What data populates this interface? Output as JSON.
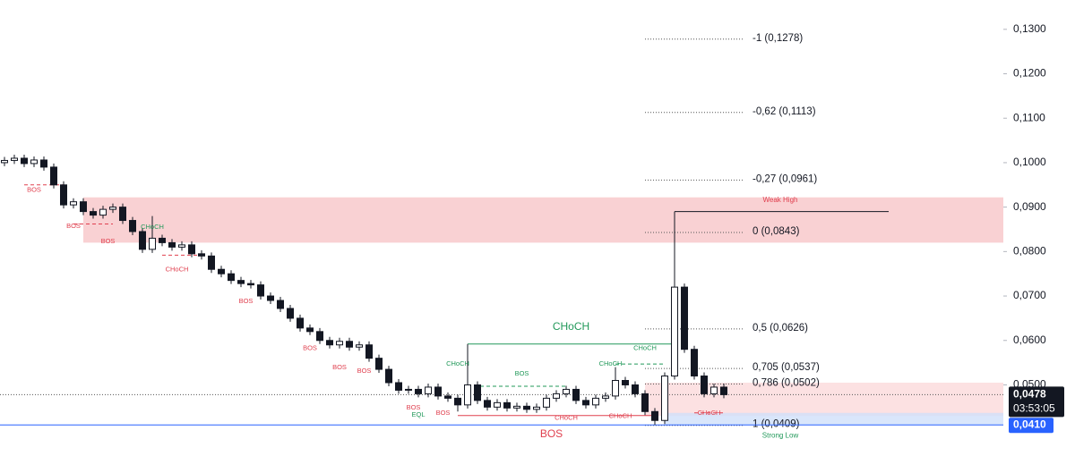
{
  "chart_data": {
    "type": "candlestick",
    "ylim": [
      0.034,
      0.1366
    ],
    "yticks": [
      {
        "value": 0.13,
        "label": "0,1300"
      },
      {
        "value": 0.12,
        "label": "0,1200"
      },
      {
        "value": 0.11,
        "label": "0,1100"
      },
      {
        "value": 0.1,
        "label": "0,1000"
      },
      {
        "value": 0.09,
        "label": "0,0900"
      },
      {
        "value": 0.08,
        "label": "0,0800"
      },
      {
        "value": 0.07,
        "label": "0,0700"
      },
      {
        "value": 0.06,
        "label": "0,0600"
      },
      {
        "value": 0.05,
        "label": "0,0500"
      }
    ],
    "up_color": "#ffffff",
    "down_color": "#131722",
    "open": [
      0.1,
      0.1005,
      0.101,
      0.0998,
      0.1006,
      0.099,
      0.095,
      0.0905,
      0.0912,
      0.089,
      0.0882,
      0.0895,
      0.09,
      0.087,
      0.0845,
      0.0805,
      0.083,
      0.082,
      0.081,
      0.0815,
      0.0795,
      0.079,
      0.076,
      0.075,
      0.0735,
      0.0728,
      0.0725,
      0.07,
      0.069,
      0.0672,
      0.065,
      0.0628,
      0.062,
      0.06,
      0.059,
      0.0598,
      0.0585,
      0.059,
      0.056,
      0.0535,
      0.0505,
      0.0488,
      0.049,
      0.048,
      0.0495,
      0.0475,
      0.047,
      0.0455,
      0.05,
      0.0465,
      0.045,
      0.046,
      0.0448,
      0.0452,
      0.0445,
      0.045,
      0.047,
      0.048,
      0.049,
      0.0465,
      0.0455,
      0.047,
      0.0475,
      0.051,
      0.05,
      0.048,
      0.044,
      0.042,
      0.052,
      0.072,
      0.058,
      0.052,
      0.048,
      0.0495
    ],
    "high": [
      0.1013,
      0.1018,
      0.1018,
      0.1014,
      0.1014,
      0.0998,
      0.0958,
      0.092,
      0.092,
      0.0898,
      0.0903,
      0.0908,
      0.0908,
      0.0878,
      0.0853,
      0.088,
      0.0838,
      0.0828,
      0.0823,
      0.0823,
      0.0803,
      0.0798,
      0.0768,
      0.0758,
      0.0743,
      0.0736,
      0.0733,
      0.0708,
      0.0698,
      0.068,
      0.0658,
      0.0636,
      0.0628,
      0.0608,
      0.0606,
      0.0606,
      0.0598,
      0.0598,
      0.0568,
      0.0543,
      0.0513,
      0.0498,
      0.0498,
      0.0503,
      0.0503,
      0.0483,
      0.0478,
      0.0592,
      0.0508,
      0.0473,
      0.0468,
      0.0468,
      0.046,
      0.046,
      0.0458,
      0.0478,
      0.0488,
      0.0498,
      0.0498,
      0.0473,
      0.0478,
      0.0483,
      0.054,
      0.0518,
      0.0508,
      0.0488,
      0.0448,
      0.0528,
      0.089,
      0.0728,
      0.0588,
      0.0528,
      0.0503,
      0.0503
    ],
    "low": [
      0.0992,
      0.0997,
      0.099,
      0.099,
      0.0982,
      0.0942,
      0.0897,
      0.0897,
      0.0882,
      0.0874,
      0.0874,
      0.0887,
      0.0862,
      0.0837,
      0.0797,
      0.0797,
      0.0812,
      0.0802,
      0.0802,
      0.0787,
      0.0782,
      0.0752,
      0.0742,
      0.0727,
      0.072,
      0.0717,
      0.0692,
      0.0682,
      0.0664,
      0.0642,
      0.062,
      0.0612,
      0.0592,
      0.0582,
      0.0582,
      0.0577,
      0.0577,
      0.0552,
      0.0527,
      0.0497,
      0.048,
      0.048,
      0.0472,
      0.0472,
      0.0467,
      0.0462,
      0.044,
      0.0447,
      0.0457,
      0.0442,
      0.0442,
      0.044,
      0.044,
      0.0437,
      0.0437,
      0.0442,
      0.0462,
      0.0472,
      0.0457,
      0.0447,
      0.0447,
      0.0462,
      0.0467,
      0.0492,
      0.0472,
      0.0432,
      0.041,
      0.0412,
      0.0512,
      0.0572,
      0.0512,
      0.0472,
      0.0472,
      0.047
    ],
    "close": [
      0.1005,
      0.101,
      0.0998,
      0.1006,
      0.099,
      0.095,
      0.0905,
      0.0912,
      0.089,
      0.0882,
      0.0895,
      0.09,
      0.087,
      0.0845,
      0.0805,
      0.083,
      0.082,
      0.081,
      0.0815,
      0.0795,
      0.079,
      0.076,
      0.075,
      0.0735,
      0.0728,
      0.0725,
      0.07,
      0.069,
      0.0672,
      0.065,
      0.0628,
      0.062,
      0.06,
      0.059,
      0.0598,
      0.0585,
      0.059,
      0.056,
      0.0535,
      0.0505,
      0.0488,
      0.049,
      0.048,
      0.0495,
      0.0475,
      0.047,
      0.0455,
      0.05,
      0.0465,
      0.045,
      0.046,
      0.0448,
      0.0452,
      0.0445,
      0.045,
      0.047,
      0.048,
      0.049,
      0.0465,
      0.0455,
      0.047,
      0.0475,
      0.051,
      0.05,
      0.048,
      0.044,
      0.042,
      0.052,
      0.072,
      0.058,
      0.052,
      0.048,
      0.0495,
      0.0478
    ],
    "zones": [
      {
        "top": 0.0922,
        "bottom": 0.082,
        "from": 8,
        "color": "#f7c5c8",
        "label": "Weak High",
        "label_color": "#e0404f"
      },
      {
        "top": 0.0505,
        "bottom": 0.043,
        "from": 65,
        "color": "#fbd9db"
      },
      {
        "top": 0.0437,
        "bottom": 0.041,
        "from": 67,
        "color": "#cfe0fa",
        "label": "Strong Low",
        "label_color": "#22995a"
      }
    ],
    "levels": [
      {
        "value": 0.089,
        "from": 68,
        "color": "#131722",
        "dashed": false
      },
      {
        "value": 0.0592,
        "from": 47,
        "to": 68,
        "color": "#22995a",
        "dashed": false
      },
      {
        "value": 0.0431,
        "from": 46,
        "to": 66,
        "color": "#e0404f",
        "dashed": false
      },
      {
        "value": 0.095,
        "from": 2,
        "to": 6,
        "color": "#e0404f",
        "dashed": true
      },
      {
        "value": 0.0862,
        "from": 7,
        "to": 11,
        "color": "#e0404f",
        "dashed": true
      },
      {
        "value": 0.0792,
        "from": 16,
        "to": 20,
        "color": "#e0404f",
        "dashed": true
      },
      {
        "value": 0.0497,
        "from": 47,
        "to": 57,
        "color": "#22995a",
        "dashed": true
      },
      {
        "value": 0.0547,
        "from": 62,
        "to": 67,
        "color": "#22995a",
        "dashed": true
      },
      {
        "value": 0.0437,
        "from": 70,
        "to": 73,
        "color": "#e0404f",
        "dashed": true
      }
    ],
    "fib": [
      {
        "label": "-1 (0,1278)",
        "value": 0.1278
      },
      {
        "label": "-0,62 (0,1113)",
        "value": 0.1113
      },
      {
        "label": "-0,27 (0,0961)",
        "value": 0.0961
      },
      {
        "label": "0 (0,0843)",
        "value": 0.0843
      },
      {
        "label": "0,5 (0,0626)",
        "value": 0.0626
      },
      {
        "label": "0,705 (0,0537)",
        "value": 0.0537
      },
      {
        "label": "0,786 (0,0502)",
        "value": 0.0502
      },
      {
        "label": "1 (0,0409)",
        "value": 0.0409
      }
    ],
    "annotations": [
      {
        "text": "BOS",
        "x": 3,
        "y": 0.0938,
        "color": "#e0404f"
      },
      {
        "text": "BOS",
        "x": 7,
        "y": 0.0857,
        "color": "#e0404f"
      },
      {
        "text": "BOS",
        "x": 10.5,
        "y": 0.0823,
        "color": "#e0404f"
      },
      {
        "text": "CHoCH",
        "x": 15,
        "y": 0.0855,
        "color": "#22995a"
      },
      {
        "text": "CHoCH",
        "x": 17.5,
        "y": 0.0759,
        "color": "#e0404f"
      },
      {
        "text": "BOS",
        "x": 24.5,
        "y": 0.0688,
        "color": "#e0404f"
      },
      {
        "text": "BOS",
        "x": 31,
        "y": 0.0582,
        "color": "#e0404f"
      },
      {
        "text": "BOS",
        "x": 34,
        "y": 0.0539,
        "color": "#e0404f"
      },
      {
        "text": "BOS",
        "x": 36.5,
        "y": 0.0531,
        "color": "#e0404f"
      },
      {
        "text": "BOS",
        "x": 41.5,
        "y": 0.0449,
        "color": "#e0404f"
      },
      {
        "text": "EQL",
        "x": 42,
        "y": 0.0433,
        "color": "#22995a"
      },
      {
        "text": "BOS",
        "x": 44.5,
        "y": 0.0437,
        "color": "#e0404f"
      },
      {
        "text": "CHoCH",
        "x": 46,
        "y": 0.0547,
        "color": "#22995a"
      },
      {
        "text": "BOS",
        "x": 52.5,
        "y": 0.0525,
        "color": "#22995a"
      },
      {
        "text": "CHoCH",
        "x": 57.5,
        "y": 0.063,
        "color": "#22995a",
        "big": true
      },
      {
        "text": "CHoCH",
        "x": 57,
        "y": 0.0425,
        "color": "#e0404f"
      },
      {
        "text": "CHoCH",
        "x": 61.5,
        "y": 0.0547,
        "color": "#22995a"
      },
      {
        "text": "CHoCH",
        "x": 62.5,
        "y": 0.0429,
        "color": "#e0404f"
      },
      {
        "text": "CHoCH",
        "x": 65,
        "y": 0.0582,
        "color": "#22995a"
      },
      {
        "text": "BOS",
        "x": 55.5,
        "y": 0.0389,
        "color": "#e0404f",
        "big": true
      },
      {
        "text": "CHoCH",
        "x": 71.5,
        "y": 0.0437,
        "color": "#e0404f"
      }
    ],
    "last_price": {
      "value": 0.0478,
      "label": "0,0478",
      "countdown": "03:53:05"
    },
    "low_line": {
      "value": 0.041,
      "label": "0,0410",
      "color": "#2962ff"
    }
  }
}
